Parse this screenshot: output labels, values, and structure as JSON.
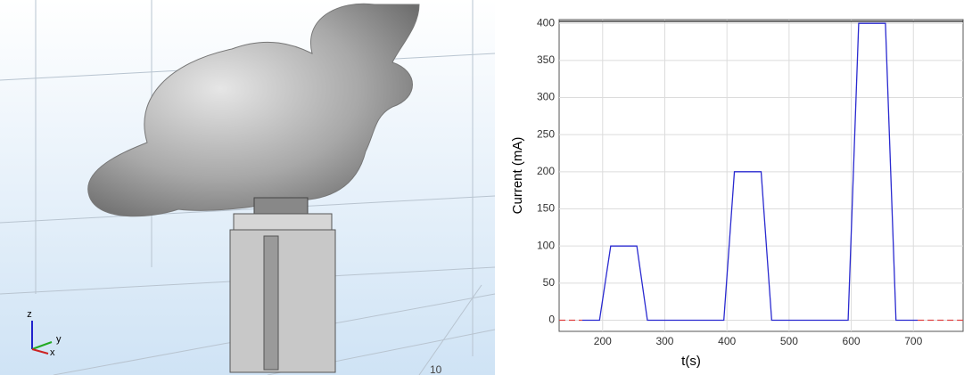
{
  "scene": {
    "axis_triad": [
      "z",
      "y",
      "x"
    ],
    "scale_label": "10"
  },
  "chart_data": {
    "type": "line",
    "x_label": "t(s)",
    "y_label": "Current (mA)",
    "xlim": [
      130,
      780
    ],
    "xticks": [
      200,
      300,
      400,
      500,
      600,
      700
    ],
    "ylim": [
      -15,
      405
    ],
    "yticks": [
      0,
      50,
      100,
      150,
      200,
      250,
      300,
      350,
      400
    ],
    "grid": true,
    "series": [
      {
        "color": "#2a2ad0",
        "dash": false,
        "x": [
          167,
          195,
          213,
          255,
          272,
          395,
          412,
          455,
          472,
          595,
          612,
          655,
          672,
          707
        ],
        "values": [
          0,
          0,
          100,
          100,
          0,
          0,
          200,
          200,
          0,
          0,
          400,
          400,
          0,
          0
        ]
      },
      {
        "color": "#e04040",
        "dash": true,
        "x": [
          130,
          167,
          400,
          707,
          780
        ],
        "values": [
          0,
          0,
          null,
          0,
          0
        ]
      }
    ]
  }
}
